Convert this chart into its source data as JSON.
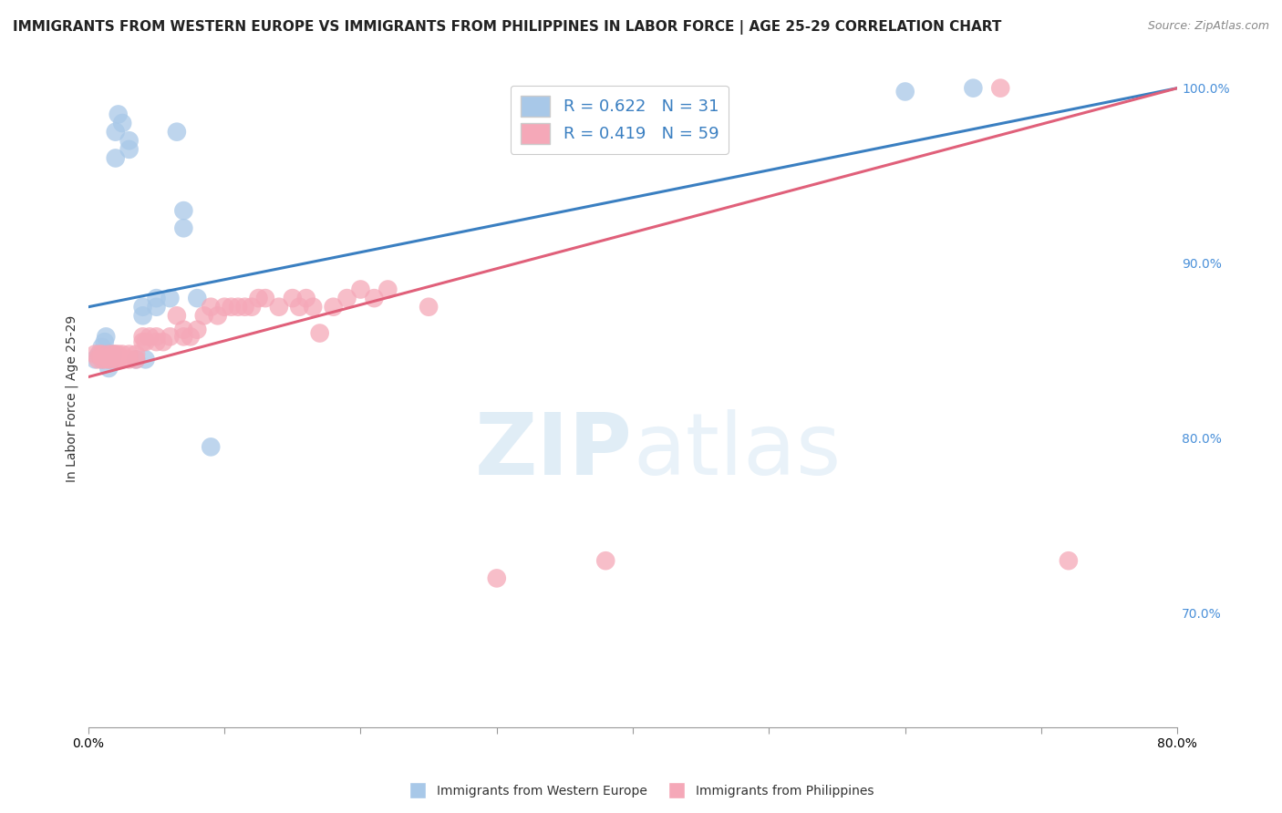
{
  "title": "IMMIGRANTS FROM WESTERN EUROPE VS IMMIGRANTS FROM PHILIPPINES IN LABOR FORCE | AGE 25-29 CORRELATION CHART",
  "source": "Source: ZipAtlas.com",
  "ylabel": "In Labor Force | Age 25-29",
  "xlim": [
    0.0,
    0.8
  ],
  "ylim": [
    0.635,
    1.01
  ],
  "blue_R": 0.622,
  "blue_N": 31,
  "pink_R": 0.419,
  "pink_N": 59,
  "blue_color": "#a8c8e8",
  "pink_color": "#f5a8b8",
  "blue_line_color": "#3a7fc1",
  "pink_line_color": "#e0607a",
  "watermark_zip": "ZIP",
  "watermark_atlas": "atlas",
  "blue_scatter_x": [
    0.005,
    0.008,
    0.01,
    0.01,
    0.012,
    0.013,
    0.015,
    0.015,
    0.016,
    0.017,
    0.018,
    0.02,
    0.02,
    0.022,
    0.025,
    0.03,
    0.03,
    0.035,
    0.04,
    0.04,
    0.042,
    0.05,
    0.05,
    0.06,
    0.065,
    0.07,
    0.07,
    0.08,
    0.09,
    0.6,
    0.65
  ],
  "blue_scatter_y": [
    0.845,
    0.848,
    0.845,
    0.852,
    0.855,
    0.858,
    0.84,
    0.845,
    0.848,
    0.845,
    0.848,
    0.96,
    0.975,
    0.985,
    0.98,
    0.965,
    0.97,
    0.845,
    0.87,
    0.875,
    0.845,
    0.875,
    0.88,
    0.88,
    0.975,
    0.92,
    0.93,
    0.88,
    0.795,
    0.998,
    1.0
  ],
  "pink_scatter_x": [
    0.005,
    0.007,
    0.008,
    0.01,
    0.01,
    0.012,
    0.015,
    0.015,
    0.016,
    0.018,
    0.02,
    0.02,
    0.022,
    0.022,
    0.025,
    0.025,
    0.03,
    0.03,
    0.035,
    0.035,
    0.04,
    0.04,
    0.042,
    0.045,
    0.05,
    0.05,
    0.055,
    0.06,
    0.065,
    0.07,
    0.07,
    0.075,
    0.08,
    0.085,
    0.09,
    0.095,
    0.1,
    0.105,
    0.11,
    0.115,
    0.12,
    0.125,
    0.13,
    0.14,
    0.15,
    0.155,
    0.16,
    0.165,
    0.17,
    0.18,
    0.19,
    0.2,
    0.21,
    0.22,
    0.25,
    0.3,
    0.38,
    0.67,
    0.72
  ],
  "pink_scatter_y": [
    0.848,
    0.845,
    0.848,
    0.845,
    0.848,
    0.845,
    0.845,
    0.848,
    0.845,
    0.848,
    0.845,
    0.848,
    0.845,
    0.848,
    0.845,
    0.848,
    0.845,
    0.848,
    0.845,
    0.848,
    0.855,
    0.858,
    0.855,
    0.858,
    0.855,
    0.858,
    0.855,
    0.858,
    0.87,
    0.858,
    0.862,
    0.858,
    0.862,
    0.87,
    0.875,
    0.87,
    0.875,
    0.875,
    0.875,
    0.875,
    0.875,
    0.88,
    0.88,
    0.875,
    0.88,
    0.875,
    0.88,
    0.875,
    0.86,
    0.875,
    0.88,
    0.885,
    0.88,
    0.885,
    0.875,
    0.72,
    0.73,
    1.0,
    0.73
  ],
  "title_fontsize": 11,
  "axis_label_fontsize": 10,
  "tick_fontsize": 10,
  "legend_fontsize": 13
}
